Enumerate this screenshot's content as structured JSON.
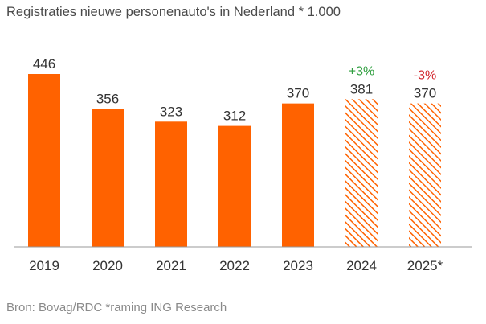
{
  "title": "Registraties nieuwe personenauto's in Nederland * 1.000",
  "source": "Bron: Bovag/RDC *raming ING Research",
  "colors": {
    "bar": "#ff6200",
    "hatch": "#ff6200",
    "axis": "#9a9a9a",
    "positive": "#2e9e3e",
    "negative": "#d11f26"
  },
  "chart_data": {
    "type": "bar",
    "categories": [
      "2019",
      "2020",
      "2021",
      "2022",
      "2023",
      "2024",
      "2025*"
    ],
    "values": [
      446,
      356,
      323,
      312,
      370,
      381,
      370
    ],
    "forecast": [
      false,
      false,
      false,
      false,
      false,
      true,
      true
    ],
    "changes": [
      null,
      null,
      null,
      null,
      null,
      "+3%",
      "-3%"
    ],
    "title": "Registraties nieuwe personenauto's in Nederland * 1.000",
    "xlabel": "",
    "ylabel": "",
    "ylim": [
      0,
      480
    ],
    "grid": false,
    "legend": "none"
  }
}
